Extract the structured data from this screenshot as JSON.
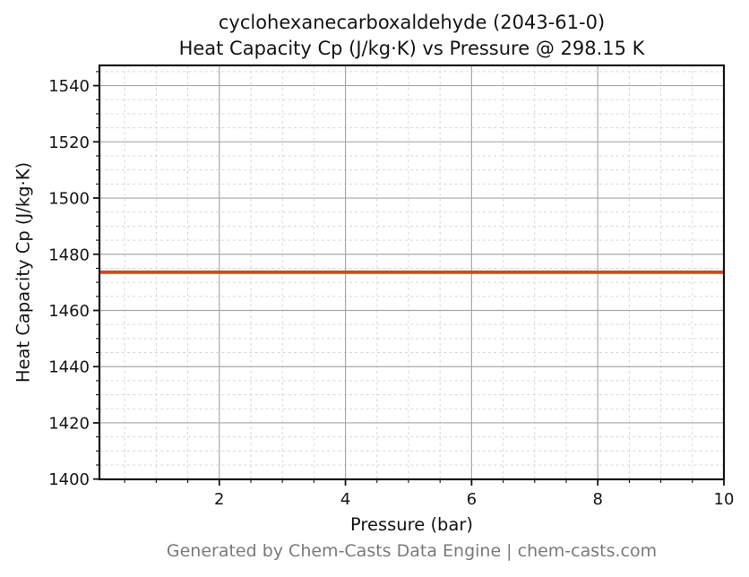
{
  "chart_data": {
    "type": "line",
    "title_line1": "cyclohexanecarboxaldehyde (2043-61-0)",
    "title_line2": "Heat Capacity Cp (J/kg·K) vs Pressure @ 298.15 K",
    "compound": "cyclohexanecarboxaldehyde",
    "cas_number": "2043-61-0",
    "temperature": "298.15 K",
    "xlabel": "Pressure (bar)",
    "ylabel": "Heat Capacity Cp (J/kg·K)",
    "footer": "Generated by Chem-Casts Data Engine | chem-casts.com",
    "xlim": [
      0.1,
      10
    ],
    "ylim": [
      1399.9,
      1547.2
    ],
    "x_major_ticks": [
      2,
      4,
      6,
      8,
      10
    ],
    "x_minor_step": 0.5,
    "y_major_ticks": [
      1400,
      1420,
      1440,
      1460,
      1480,
      1500,
      1520,
      1540
    ],
    "y_minor_step": 5,
    "grid": {
      "major_color": "#a9a9a9",
      "minor_color": "#d8d8d8",
      "minor_dashed": true
    },
    "colors": {
      "line": "#d0491e",
      "axis": "#141414",
      "tick_label": "#141414",
      "footer_text": "#7a7a7a",
      "background": "#ffffff"
    },
    "series": [
      {
        "name": "Heat Capacity Cp",
        "color": "#d0491e",
        "x": [
          0.1,
          10
        ],
        "y": [
          1473.6,
          1473.6
        ],
        "constant_value": 1473.6
      }
    ],
    "legend": null
  }
}
